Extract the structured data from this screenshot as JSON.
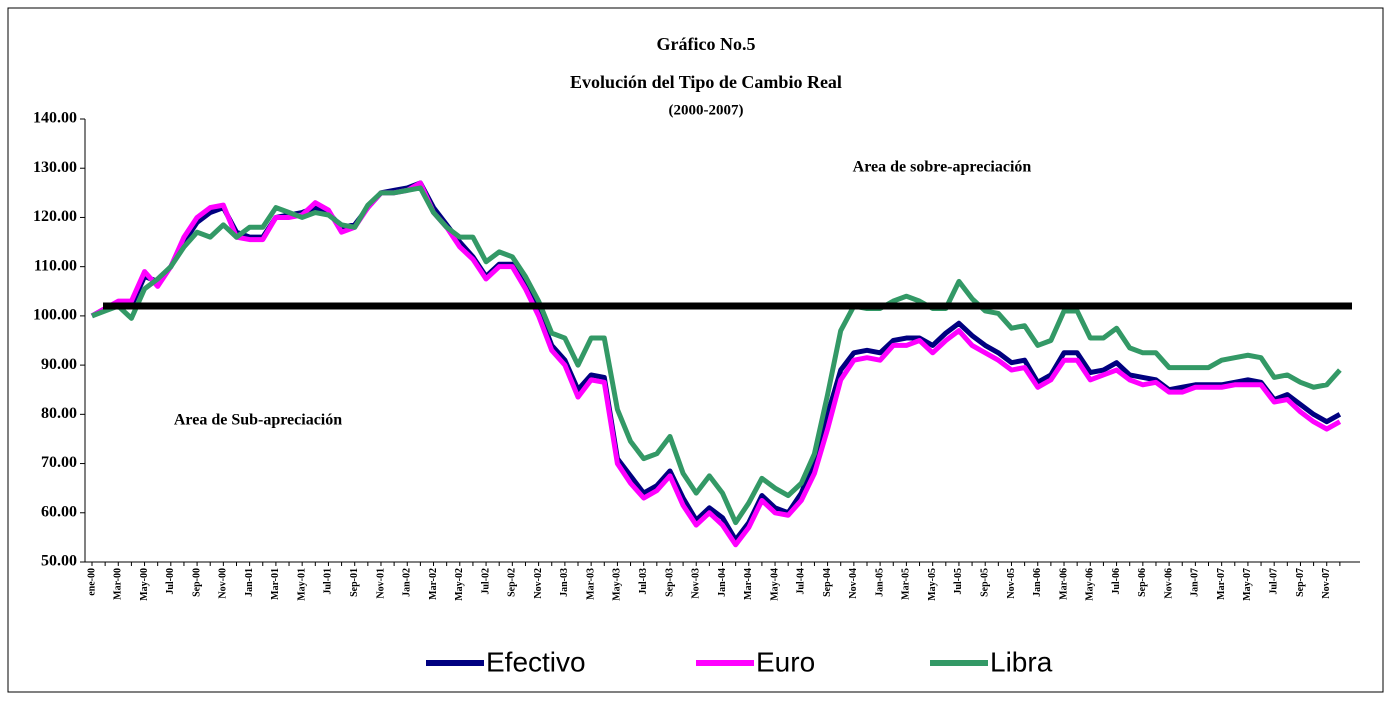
{
  "chart_data": {
    "type": "line",
    "title": "Gráfico No.5",
    "subtitle": "Evolución del Tipo de Cambio Real",
    "period": "(2000-2007)",
    "annotations": [
      "Area de sobre-apreciación",
      "Area de Sub-apreciación"
    ],
    "categories": [
      "ene-00",
      null,
      "Mar-00",
      null,
      "May-00",
      null,
      "Jul-00",
      null,
      "Sep-00",
      null,
      "Nov-00",
      null,
      "Jan-01",
      null,
      "Mar-01",
      null,
      "May-01",
      null,
      "Jul-01",
      null,
      "Sep-01",
      null,
      "Nov-01",
      null,
      "Jan-02",
      null,
      "Mar-02",
      null,
      "May-02",
      null,
      "Jul-02",
      null,
      "Sep-02",
      null,
      "Nov-02",
      null,
      "Jan-03",
      null,
      "Mar-03",
      null,
      "May-03",
      null,
      "Jul-03",
      null,
      "Sep-03",
      null,
      "Nov-03",
      null,
      "Jan-04",
      null,
      "Mar-04",
      null,
      "May-04",
      null,
      "Jul-04",
      null,
      "Sep-04",
      null,
      "Nov-04",
      null,
      "Jan-05",
      null,
      "Mar-05",
      null,
      "May-05",
      null,
      "Jul-05",
      null,
      "Sep-05",
      null,
      "Nov-05",
      null,
      "Jan-06",
      null,
      "Mar-06",
      null,
      "May-06",
      null,
      "Jul-06",
      null,
      "Sep-06",
      null,
      "Nov-06",
      null,
      "Jan-07",
      null,
      "Mar-07",
      null,
      "May-07",
      null,
      "Jul-07",
      null,
      "Sep-07",
      null,
      "Nov-07",
      null
    ],
    "series": [
      {
        "name": "Efectivo",
        "color": "#000080",
        "values": [
          100,
          101.5,
          102.5,
          102,
          108,
          107,
          110,
          115,
          119,
          121,
          122,
          117,
          116,
          116,
          120,
          120.5,
          121,
          122,
          121,
          118,
          118.5,
          122,
          125,
          125.5,
          126,
          127,
          122,
          118.5,
          115,
          112,
          108,
          110.5,
          110.5,
          106,
          101,
          94,
          91,
          85,
          88,
          87.5,
          71,
          67.5,
          64,
          65.5,
          68.5,
          63,
          58.5,
          61,
          59,
          54.5,
          58,
          63.5,
          61,
          60,
          64,
          70.5,
          80,
          89,
          92.5,
          93,
          92.5,
          95,
          95.5,
          95.5,
          94,
          96.5,
          98.5,
          96,
          94,
          92.5,
          90.5,
          91,
          86.5,
          88,
          92.5,
          92.5,
          88.5,
          89,
          90.5,
          88,
          87.5,
          87,
          85,
          85.5,
          86,
          86,
          86,
          86.5,
          87,
          86.5,
          83,
          84,
          82,
          80,
          78.5,
          80
        ]
      },
      {
        "name": "Euro",
        "color": "#ff00ff",
        "values": [
          100,
          101.5,
          103,
          103,
          109,
          106,
          110,
          116,
          120,
          122,
          122.5,
          116,
          115.5,
          115.5,
          120,
          120,
          120.5,
          123,
          121.5,
          117,
          118,
          122,
          125,
          125,
          125.5,
          127,
          121,
          118,
          114,
          111.5,
          107.5,
          110,
          110,
          105.5,
          100,
          93,
          90,
          83.5,
          87,
          86.5,
          70,
          66,
          63,
          64.5,
          67.5,
          61.5,
          57.5,
          60,
          57.5,
          53.5,
          57,
          62.5,
          60,
          59.5,
          62.5,
          68,
          77,
          87,
          91,
          91.5,
          91,
          94,
          94,
          95,
          92.5,
          95,
          97,
          94,
          92.5,
          91,
          89,
          89.5,
          85.5,
          87,
          91,
          91,
          87,
          88,
          89,
          87,
          86,
          86.5,
          84.5,
          84.5,
          85.5,
          85.5,
          85.5,
          86,
          86,
          86,
          82.5,
          83,
          80.5,
          78.5,
          77,
          78.5
        ]
      },
      {
        "name": "Libra",
        "color": "#339966",
        "values": [
          100,
          101,
          102,
          99.5,
          105.5,
          107.5,
          110,
          114,
          117,
          116,
          118.5,
          116,
          118,
          118,
          122,
          121,
          120,
          121,
          120.5,
          118.5,
          118,
          122.5,
          125,
          125,
          125.5,
          126,
          121,
          118,
          116,
          116,
          111,
          113,
          112,
          108,
          103,
          96.5,
          95.5,
          90,
          95.5,
          95.5,
          81,
          74.5,
          71,
          72,
          75.5,
          68,
          64,
          67.5,
          64,
          58,
          62,
          67,
          65,
          63.5,
          66,
          72,
          84,
          97,
          102,
          101.5,
          101.5,
          103,
          104,
          103,
          101.5,
          101.5,
          107,
          103.5,
          101,
          100.5,
          97.5,
          98,
          94,
          95,
          101,
          101,
          95.5,
          95.5,
          97.5,
          93.5,
          92.5,
          92.5,
          89.5,
          89.5,
          89.5,
          89.5,
          91,
          91.5,
          92,
          91.5,
          87.5,
          88,
          86.5,
          85.5,
          86,
          89
        ]
      }
    ],
    "reference_line": 102,
    "ylim": [
      50,
      140
    ],
    "yticks": [
      {
        "value": 50,
        "label": "50.00"
      },
      {
        "value": 60,
        "label": "60.00"
      },
      {
        "value": 70,
        "label": "70.00"
      },
      {
        "value": 80,
        "label": "80.00"
      },
      {
        "value": 90,
        "label": "90.00"
      },
      {
        "value": 100,
        "label": "100.00"
      },
      {
        "value": 110,
        "label": "110.00"
      },
      {
        "value": 120,
        "label": "120.00"
      },
      {
        "value": 130,
        "label": "130.00"
      },
      {
        "value": 140,
        "label": "140.00"
      }
    ],
    "grid": false,
    "legend": "bottom"
  }
}
